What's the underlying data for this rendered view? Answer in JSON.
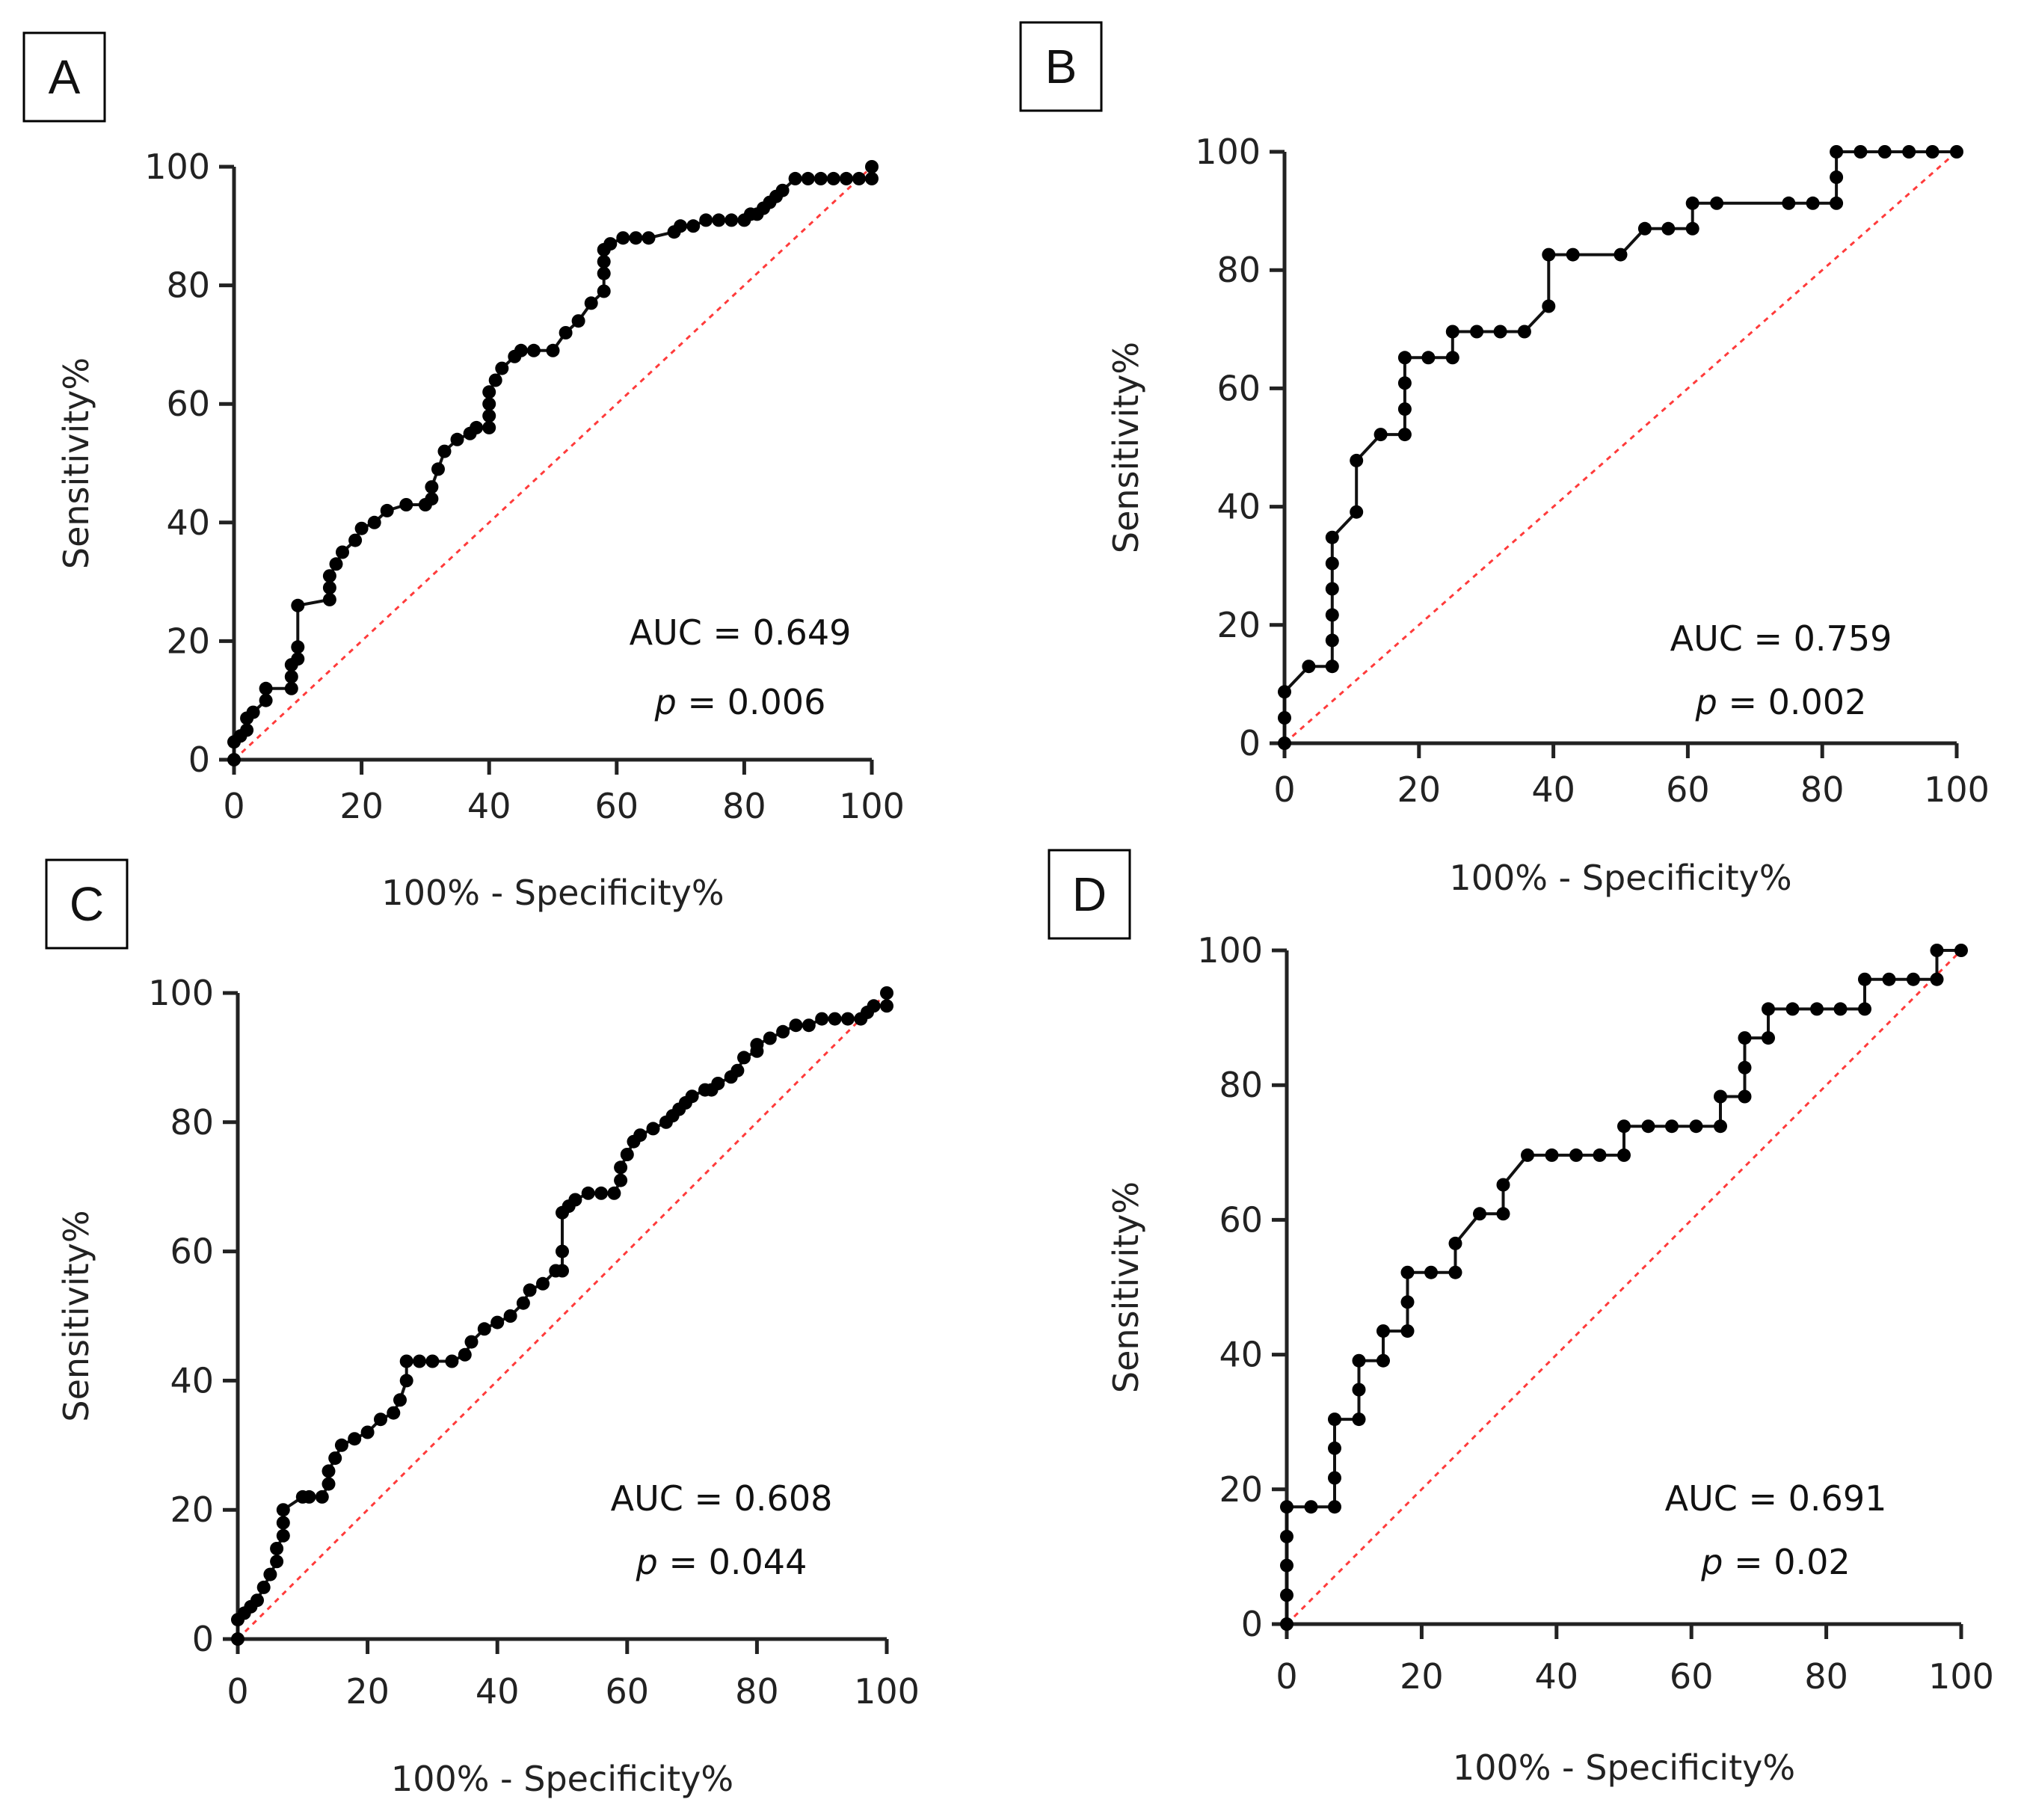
{
  "chart_data": [
    {
      "panel": "A",
      "type": "line",
      "xlabel": "100% - Specificity%",
      "ylabel": "Sensitivity%",
      "xlim": [
        0,
        100
      ],
      "ylim": [
        0,
        100
      ],
      "xticks": [
        "0",
        "20",
        "40",
        "60",
        "80",
        "100"
      ],
      "yticks": [
        "0",
        "20",
        "40",
        "60",
        "80",
        "100"
      ],
      "auc_text": "AUC = 0.649",
      "p_label": "p",
      "p_value_text": " = 0.006",
      "reference_line": "diagonal",
      "series": [
        {
          "name": "ROC",
          "x": [
            0,
            0,
            1,
            2,
            2,
            3,
            5,
            5,
            9,
            9,
            9,
            10,
            10,
            10,
            15,
            15,
            15,
            16,
            17,
            19,
            20,
            22,
            24,
            27,
            30,
            31,
            31,
            32,
            33,
            35,
            37,
            38,
            40,
            40,
            40,
            40,
            41,
            42,
            44,
            45,
            47,
            50,
            52,
            54,
            56,
            58,
            58,
            58,
            58,
            59,
            61,
            63,
            65,
            69,
            70,
            72,
            74,
            76,
            78,
            80,
            81,
            82,
            83,
            84,
            85,
            86,
            88,
            90,
            92,
            94,
            96,
            98,
            100,
            100
          ],
          "y": [
            0,
            3,
            4,
            5,
            7,
            8,
            10,
            12,
            12,
            14,
            16,
            17,
            19,
            26,
            27,
            29,
            31,
            33,
            35,
            37,
            39,
            40,
            42,
            43,
            43,
            44,
            46,
            49,
            52,
            54,
            55,
            56,
            56,
            58,
            60,
            62,
            64,
            66,
            68,
            69,
            69,
            69,
            72,
            74,
            77,
            79,
            82,
            84,
            86,
            87,
            88,
            88,
            88,
            89,
            90,
            90,
            91,
            91,
            91,
            91,
            92,
            92,
            93,
            94,
            95,
            96,
            98,
            98,
            98,
            98,
            98,
            98,
            98,
            100
          ]
        }
      ]
    },
    {
      "panel": "B",
      "type": "line",
      "xlabel": "100% - Specificity%",
      "ylabel": "Sensitivity%",
      "xlim": [
        0,
        100
      ],
      "ylim": [
        0,
        100
      ],
      "xticks": [
        "0",
        "20",
        "40",
        "60",
        "80",
        "100"
      ],
      "yticks": [
        "0",
        "20",
        "40",
        "60",
        "80",
        "100"
      ],
      "auc_text": "AUC = 0.759",
      "p_label": "p",
      "p_value_text": " = 0.002",
      "reference_line": "diagonal",
      "series": [
        {
          "name": "ROC",
          "x": [
            0,
            0,
            0,
            3.6,
            7.1,
            7.1,
            7.1,
            7.1,
            7.1,
            7.1,
            10.7,
            10.7,
            14.3,
            17.9,
            17.9,
            17.9,
            17.9,
            21.4,
            25,
            25,
            28.6,
            32.1,
            35.7,
            39.3,
            39.3,
            42.9,
            50,
            53.6,
            57.1,
            60.7,
            60.7,
            64.3,
            75,
            78.6,
            82.1,
            82.1,
            82.1,
            85.7,
            89.3,
            92.9,
            96.4,
            100
          ],
          "y": [
            0,
            4.3,
            8.7,
            13,
            13,
            17.4,
            21.7,
            26.1,
            30.4,
            34.8,
            39.1,
            47.8,
            52.2,
            52.2,
            56.5,
            60.9,
            65.2,
            65.2,
            65.2,
            69.6,
            69.6,
            69.6,
            69.6,
            73.9,
            82.6,
            82.6,
            82.6,
            87,
            87,
            87,
            91.3,
            91.3,
            91.3,
            91.3,
            91.3,
            95.7,
            100,
            100,
            100,
            100,
            100,
            100
          ]
        }
      ]
    },
    {
      "panel": "C",
      "type": "line",
      "xlabel": "100% - Specificity%",
      "ylabel": "Sensitivity%",
      "xlim": [
        0,
        100
      ],
      "ylim": [
        0,
        100
      ],
      "xticks": [
        "0",
        "20",
        "40",
        "60",
        "80",
        "100"
      ],
      "yticks": [
        "0",
        "20",
        "40",
        "60",
        "80",
        "100"
      ],
      "auc_text": "AUC = 0.608",
      "p_label": "p",
      "p_value_text": " = 0.044",
      "reference_line": "diagonal",
      "series": [
        {
          "name": "ROC",
          "x": [
            0,
            0,
            1,
            2,
            3,
            4,
            5,
            6,
            6,
            7,
            7,
            7,
            10,
            11,
            13,
            14,
            14,
            15,
            16,
            18,
            20,
            22,
            24,
            25,
            26,
            26,
            28,
            30,
            33,
            35,
            36,
            38,
            40,
            42,
            44,
            45,
            47,
            49,
            50,
            50,
            50,
            51,
            52,
            54,
            56,
            58,
            59,
            59,
            60,
            61,
            62,
            64,
            66,
            67,
            68,
            69,
            70,
            72,
            73,
            74,
            76,
            77,
            78,
            80,
            80,
            82,
            84,
            86,
            88,
            90,
            92,
            94,
            96,
            97,
            98,
            100,
            100
          ],
          "y": [
            0,
            3,
            4,
            5,
            6,
            8,
            10,
            12,
            14,
            16,
            18,
            20,
            22,
            22,
            22,
            24,
            26,
            28,
            30,
            31,
            32,
            34,
            35,
            37,
            40,
            43,
            43,
            43,
            43,
            44,
            46,
            48,
            49,
            50,
            52,
            54,
            55,
            57,
            57,
            60,
            66,
            67,
            68,
            69,
            69,
            69,
            71,
            73,
            75,
            77,
            78,
            79,
            80,
            81,
            82,
            83,
            84,
            85,
            85,
            86,
            87,
            88,
            90,
            91,
            92,
            93,
            94,
            95,
            95,
            96,
            96,
            96,
            96,
            97,
            98,
            98,
            100
          ]
        }
      ]
    },
    {
      "panel": "D",
      "type": "line",
      "xlabel": "100% - Specificity%",
      "ylabel": "Sensitivity%",
      "xlim": [
        0,
        100
      ],
      "ylim": [
        0,
        100
      ],
      "xticks": [
        "0",
        "20",
        "40",
        "60",
        "80",
        "100"
      ],
      "yticks": [
        "0",
        "20",
        "40",
        "60",
        "80",
        "100"
      ],
      "auc_text": "AUC = 0.691",
      "p_label": "p",
      "p_value_text": " = 0.02",
      "reference_line": "diagonal",
      "series": [
        {
          "name": "ROC",
          "x": [
            0,
            0,
            0,
            0,
            0,
            3.6,
            7.1,
            7.1,
            7.1,
            7.1,
            10.7,
            10.7,
            10.7,
            14.3,
            14.3,
            17.9,
            17.9,
            17.9,
            21.4,
            25,
            25,
            28.6,
            32.1,
            32.1,
            35.7,
            39.3,
            42.9,
            46.4,
            50,
            50,
            53.6,
            57.1,
            60.7,
            64.3,
            64.3,
            67.9,
            67.9,
            67.9,
            71.4,
            71.4,
            75,
            78.6,
            82.1,
            85.7,
            85.7,
            89.3,
            92.9,
            96.4,
            96.4,
            100
          ],
          "y": [
            0,
            4.3,
            8.7,
            13,
            17.4,
            17.4,
            17.4,
            21.7,
            26.1,
            30.4,
            30.4,
            34.8,
            39.1,
            39.1,
            43.5,
            43.5,
            47.8,
            52.2,
            52.2,
            52.2,
            56.5,
            60.9,
            60.9,
            65.2,
            69.6,
            69.6,
            69.6,
            69.6,
            69.6,
            73.9,
            73.9,
            73.9,
            73.9,
            73.9,
            78.3,
            78.3,
            82.6,
            87,
            87,
            91.3,
            91.3,
            91.3,
            91.3,
            91.3,
            95.7,
            95.7,
            95.7,
            95.7,
            100,
            100
          ]
        }
      ]
    }
  ]
}
